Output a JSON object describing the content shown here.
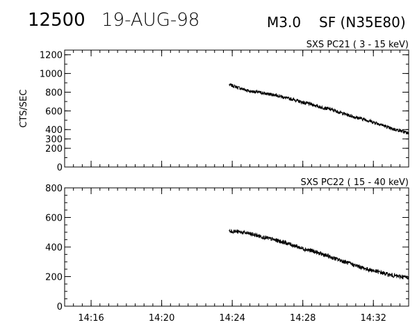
{
  "header": {
    "event_id": "12500",
    "date": "19-AUG-98",
    "flare_class": "M3.0",
    "location": "SF (N35E80)"
  },
  "chart_data": [
    {
      "type": "line",
      "title": "SXS PC21  (  3 - 15 keV)",
      "ylabel": "CTS/SEC",
      "xlabel": "",
      "ylim": [
        0,
        1250
      ],
      "xlim": [
        "14:14:30",
        "14:34:00"
      ],
      "yticks": [
        0,
        200,
        300,
        400,
        600,
        800,
        1000,
        1200
      ],
      "xticks": [
        "14:16",
        "14:20",
        "14:24",
        "14:28",
        "14:32"
      ],
      "grid": false,
      "series": [
        {
          "x": [
            "14:23:50",
            "14:24:30",
            "14:25:00",
            "14:25:30",
            "14:26:00",
            "14:26:30",
            "14:27:00",
            "14:27:30",
            "14:28:00",
            "14:28:30",
            "14:29:00",
            "14:29:30",
            "14:30:00",
            "14:30:30",
            "14:31:00",
            "14:31:30",
            "14:32:00",
            "14:32:30",
            "14:33:00",
            "14:33:30",
            "14:34:00"
          ],
          "values": [
            880,
            840,
            810,
            800,
            780,
            770,
            740,
            720,
            690,
            670,
            640,
            620,
            590,
            560,
            530,
            510,
            480,
            450,
            410,
            390,
            360
          ]
        }
      ]
    },
    {
      "type": "line",
      "title": "SXS PC22  ( 15 - 40 keV)",
      "ylabel": "",
      "xlabel": "",
      "ylim": [
        0,
        800
      ],
      "xlim": [
        "14:14:30",
        "14:34:00"
      ],
      "yticks": [
        0,
        200,
        400,
        600,
        800
      ],
      "xticks": [
        "14:16",
        "14:20",
        "14:24",
        "14:28",
        "14:32"
      ],
      "grid": false,
      "series": [
        {
          "x": [
            "14:23:50",
            "14:24:30",
            "14:25:00",
            "14:25:30",
            "14:26:00",
            "14:26:30",
            "14:27:00",
            "14:27:30",
            "14:28:00",
            "14:28:30",
            "14:29:00",
            "14:29:30",
            "14:30:00",
            "14:30:30",
            "14:31:00",
            "14:31:30",
            "14:32:00",
            "14:32:30",
            "14:33:00",
            "14:33:30",
            "14:34:00"
          ],
          "values": [
            510,
            500,
            490,
            475,
            460,
            445,
            430,
            410,
            390,
            375,
            355,
            335,
            315,
            295,
            275,
            255,
            240,
            225,
            210,
            200,
            195
          ]
        }
      ]
    }
  ]
}
